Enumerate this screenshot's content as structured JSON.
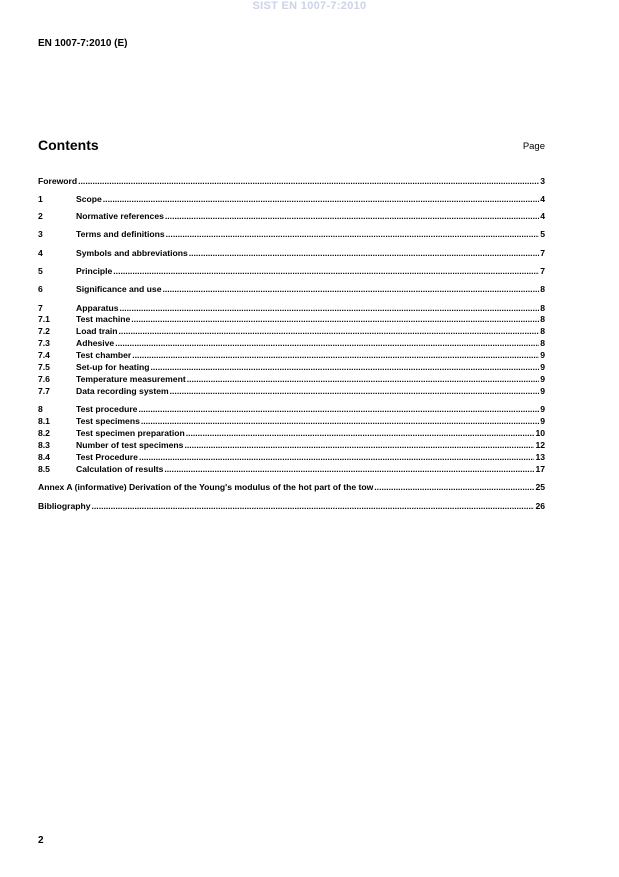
{
  "watermark": "SIST EN 1007-7:2010",
  "header": "EN 1007-7:2010 (E)",
  "contents_title": "Contents",
  "page_label": "Page",
  "toc": [
    {
      "num": "",
      "title": "Foreword",
      "page": "3"
    },
    {
      "num": "1",
      "title": "Scope",
      "page": "4"
    },
    {
      "num": "2",
      "title": "Normative references",
      "page": "4"
    },
    {
      "num": "3",
      "title": "Terms and definitions",
      "page": "5"
    },
    {
      "num": "4",
      "title": "Symbols and abbreviations",
      "page": "7"
    },
    {
      "num": "5",
      "title": "Principle",
      "page": "7"
    },
    {
      "num": "6",
      "title": "Significance and use",
      "page": "8"
    },
    {
      "num": "7",
      "title": "Apparatus",
      "page": "8"
    },
    {
      "num": "7.1",
      "title": "Test machine",
      "page": "8"
    },
    {
      "num": "7.2",
      "title": "Load train",
      "page": "8"
    },
    {
      "num": "7.3",
      "title": "Adhesive",
      "page": "8"
    },
    {
      "num": "7.4",
      "title": "Test chamber",
      "page": "9"
    },
    {
      "num": "7.5",
      "title": "Set-up for heating",
      "page": "9"
    },
    {
      "num": "7.6",
      "title": "Temperature measurement",
      "page": "9"
    },
    {
      "num": "7.7",
      "title": "Data recording system",
      "page": "9"
    },
    {
      "num": "8",
      "title": "Test procedure",
      "page": "9"
    },
    {
      "num": "8.1",
      "title": "Test specimens",
      "page": "9"
    },
    {
      "num": "8.2",
      "title": "Test specimen preparation",
      "page": "10"
    },
    {
      "num": "8.3",
      "title": "Number of test specimens",
      "page": "12"
    },
    {
      "num": "8.4",
      "title": "Test Procedure",
      "page": "13"
    },
    {
      "num": "8.5",
      "title": "Calculation of results",
      "page": "17"
    },
    {
      "num": "",
      "title": "Annex A (informative)  Derivation of the Young's modulus of the hot part of the tow",
      "page": "25"
    },
    {
      "num": "",
      "title": "Bibliography",
      "page": "26"
    }
  ],
  "page_number": "2"
}
